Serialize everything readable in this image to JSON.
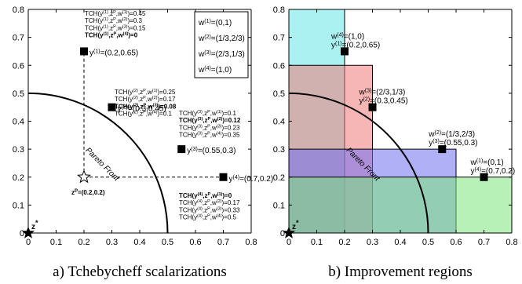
{
  "chart_data": [
    {
      "type": "scatter",
      "panel": "a",
      "caption": "a) Tchebycheff scalarizations",
      "xlim": [
        0,
        0.8
      ],
      "ylim": [
        0,
        0.8
      ],
      "xticks": [
        "0",
        "0.1",
        "0.2",
        "0.3",
        "0.4",
        "0.5",
        "0.6",
        "0.7",
        "0.8"
      ],
      "yticks": [
        "0",
        "0.1",
        "0.2",
        "0.3",
        "0.4",
        "0.5",
        "0.6",
        "0.7",
        "0.8"
      ],
      "ideal_point": {
        "x": 0,
        "y": 0,
        "label": "z",
        "sup": "*"
      },
      "reference_point": {
        "x": 0.2,
        "y": 0.2,
        "label": "z",
        "sup": "P",
        "value_text": "=(0.2,0.2)"
      },
      "front_label": "Pareto Front",
      "front": {
        "shape": "quarter-circle",
        "radius": 0.5
      },
      "points": [
        {
          "x": 0.2,
          "y": 0.65,
          "label": "y",
          "sup": "(1)",
          "value_text": "=(0.2,0.65)"
        },
        {
          "x": 0.3,
          "y": 0.45,
          "label": "y",
          "sup": "(2)",
          "value_text": "=(0.3,0.45)"
        },
        {
          "x": 0.55,
          "y": 0.3,
          "label": "y",
          "sup": "(3)",
          "value_text": "=(0.55,0.3)"
        },
        {
          "x": 0.7,
          "y": 0.2,
          "label": "y",
          "sup": "(4)",
          "value_text": "=(0.7,0.2)"
        }
      ],
      "legend": {
        "placement": "top-right",
        "items": [
          {
            "sym": "w",
            "sup": "(1)",
            "text": "=(0,1)"
          },
          {
            "sym": "w",
            "sup": "(2)",
            "text": "=(1/3,2/3)"
          },
          {
            "sym": "w",
            "sup": "(3)",
            "text": "=(2/3,1/3)"
          },
          {
            "sym": "w",
            "sup": "(4)",
            "text": "=(1,0)"
          }
        ]
      },
      "annotation_groups": [
        {
          "lines": [
            {
              "y": "1",
              "w": "1",
              "value": "=0.45",
              "bold": false
            },
            {
              "y": "1",
              "w": "2",
              "value": "=0.3",
              "bold": false
            },
            {
              "y": "1",
              "w": "3",
              "value": "=0.15",
              "bold": false
            },
            {
              "y": "1",
              "w": "4",
              "value": "=0",
              "bold": true
            }
          ]
        },
        {
          "lines": [
            {
              "y": "2",
              "w": "1",
              "value": "=0.25",
              "bold": false
            },
            {
              "y": "2",
              "w": "2",
              "value": "=0.17",
              "bold": false
            },
            {
              "y": "2",
              "w": "3",
              "value": "=0.08",
              "bold": true
            },
            {
              "y": "2",
              "w": "4",
              "value": "=0.1",
              "bold": false
            }
          ]
        },
        {
          "lines": [
            {
              "y": "3",
              "w": "1",
              "value": "=0.1",
              "bold": false
            },
            {
              "y": "3",
              "w": "2",
              "value": "=0.12",
              "bold": true
            },
            {
              "y": "3",
              "w": "3",
              "value": "=0.23",
              "bold": false
            },
            {
              "y": "3",
              "w": "4",
              "value": "=0.35",
              "bold": false
            }
          ]
        },
        {
          "lines": [
            {
              "y": "4",
              "w": "1",
              "value": "=0",
              "bold": true
            },
            {
              "y": "4",
              "w": "2",
              "value": "=0.17",
              "bold": false
            },
            {
              "y": "4",
              "w": "3",
              "value": "=0.33",
              "bold": false
            },
            {
              "y": "4",
              "w": "4",
              "value": "=0.5",
              "bold": false
            }
          ]
        }
      ],
      "annotation_prefix": "TCH(y",
      "annotation_mid": ",z",
      "annotation_mid_sup": "P",
      "annotation_w": ",w",
      "annotation_close": ")"
    },
    {
      "type": "scatter",
      "panel": "b",
      "caption": "b) Improvement regions",
      "xlim": [
        0,
        0.8
      ],
      "ylim": [
        0,
        0.8
      ],
      "xticks": [
        "0",
        "0.1",
        "0.2",
        "0.3",
        "0.4",
        "0.5",
        "0.6",
        "0.7",
        "0.8"
      ],
      "yticks": [
        "0",
        "0.1",
        "0.2",
        "0.3",
        "0.4",
        "0.5",
        "0.6",
        "0.7",
        "0.8"
      ],
      "ideal_point": {
        "x": 0,
        "y": 0,
        "label": "z",
        "sup": "*"
      },
      "front_label": "Pareto Front",
      "front": {
        "shape": "quarter-circle",
        "radius": 0.5
      },
      "regions": [
        {
          "x0": 0,
          "x1": 0.2,
          "y0": 0,
          "y1": 0.8,
          "color": "#66e6e6"
        },
        {
          "x0": 0,
          "x1": 0.3,
          "y0": 0,
          "y1": 0.6,
          "color": "#f07a7a"
        },
        {
          "x0": 0,
          "x1": 0.6,
          "y0": 0,
          "y1": 0.3,
          "color": "#7070f0"
        },
        {
          "x0": 0,
          "x1": 0.8,
          "y0": 0,
          "y1": 0.2,
          "color": "#7ce57c"
        }
      ],
      "points": [
        {
          "x": 0.2,
          "y": 0.65,
          "w_sup": "(4)",
          "w_text": "=(1,0)",
          "y_sup": "(1)",
          "y_text": "=(0.2,0.65)"
        },
        {
          "x": 0.3,
          "y": 0.45,
          "w_sup": "(3)",
          "w_text": "=(2/3,1/3)",
          "y_sup": "(2)",
          "y_text": "=(0.3,0.45)"
        },
        {
          "x": 0.55,
          "y": 0.3,
          "w_sup": "(2)",
          "w_text": "=(1/3,2/3)",
          "y_sup": "(3)",
          "y_text": "=(0.55,0.3)"
        },
        {
          "x": 0.7,
          "y": 0.2,
          "w_sup": "(1)",
          "w_text": "=(0,1)",
          "y_sup": "(4)",
          "y_text": "=(0.7,0.2)"
        }
      ]
    }
  ]
}
